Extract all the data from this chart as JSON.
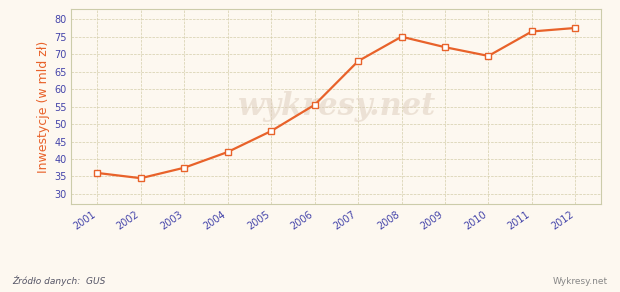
{
  "years": [
    2001,
    2002,
    2003,
    2004,
    2005,
    2006,
    2007,
    2008,
    2009,
    2010,
    2011,
    2012
  ],
  "values": [
    36.0,
    34.5,
    37.5,
    42.0,
    48.0,
    55.5,
    68.0,
    75.0,
    72.0,
    69.5,
    76.5,
    77.5
  ],
  "line_color": "#e8622a",
  "marker_style": "s",
  "marker_facecolor": "#ffffff",
  "marker_edgecolor": "#e8622a",
  "marker_size": 4,
  "line_width": 1.6,
  "ylabel": "Inwestycje (w mld zł)",
  "ylabel_color": "#e8622a",
  "bg_color": "#fdf8f0",
  "plot_bg_color": "#fdf8f0",
  "grid_color": "#d4ceaa",
  "grid_linestyle": "--",
  "border_color": "#ccccaa",
  "ylim": [
    27,
    83
  ],
  "yticks": [
    30,
    35,
    40,
    45,
    50,
    55,
    60,
    65,
    70,
    75,
    80
  ],
  "source_text": "Źródło danych:  GUS",
  "watermark_text": "wykresy.net",
  "watermark2_text": "Wykresy.net",
  "tick_color": "#4444aa",
  "tick_fontsize": 7,
  "ylabel_fontsize": 9,
  "xlim_left": 2000.4,
  "xlim_right": 2012.6
}
